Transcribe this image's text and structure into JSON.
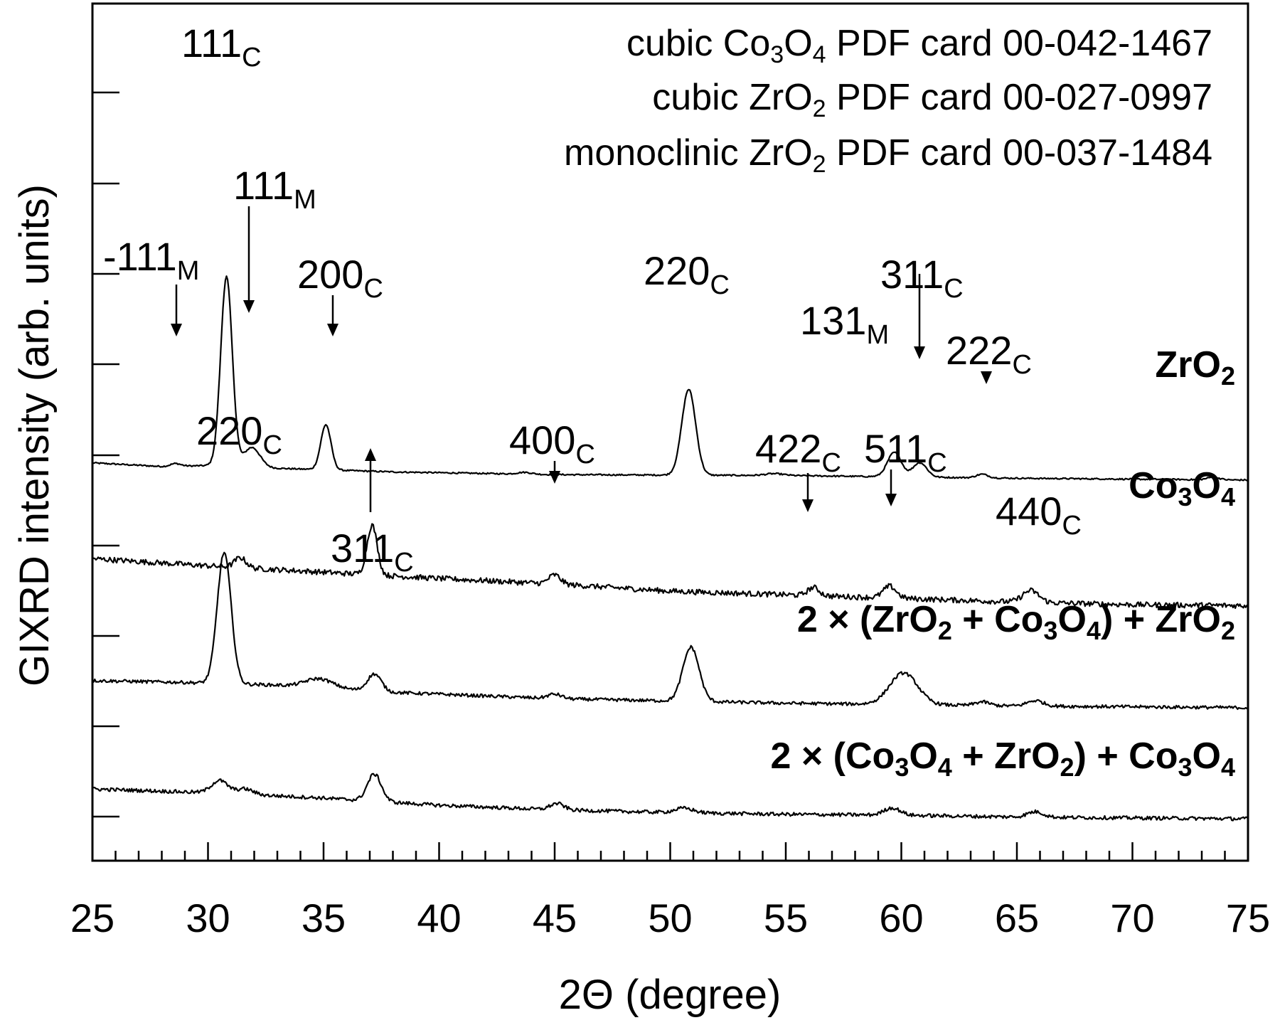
{
  "chart_data": {
    "type": "line",
    "xlabel": "2Θ (degree)",
    "ylabel": "GIXRD intensity (arb. units)",
    "xlim": [
      25,
      75
    ],
    "x_ticks": [
      25,
      30,
      35,
      40,
      45,
      50,
      55,
      60,
      65,
      70,
      75
    ],
    "y_tick_labels_shown": false,
    "grid": false,
    "references": [
      {
        "pre": "cubic Co",
        "s1": "3",
        "mid": "O",
        "s2": "4",
        "post": " PDF card 00-042-1467"
      },
      {
        "pre": "cubic ZrO",
        "s1": "2",
        "mid": "",
        "s2": "",
        "post": " PDF card 00-027-0997"
      },
      {
        "pre": "monoclinic ZrO",
        "s1": "2",
        "mid": "",
        "s2": "",
        "post": " PDF card 00-037-1484"
      }
    ],
    "series": [
      {
        "label_parts": [
          {
            "t": "ZrO"
          },
          {
            "t": "2",
            "sub": true
          }
        ],
        "baseline": [
          [
            25,
            0.66
          ],
          [
            28,
            0.62
          ],
          [
            30,
            0.63
          ],
          [
            33,
            0.6
          ],
          [
            38,
            0.56
          ],
          [
            45,
            0.53
          ],
          [
            55,
            0.52
          ],
          [
            65,
            0.49
          ],
          [
            75,
            0.47
          ]
        ],
        "peaks": [
          [
            28.6,
            0.03,
            0.22
          ],
          [
            30.8,
            2.1,
            0.25
          ],
          [
            31.9,
            0.22,
            0.35
          ],
          [
            35.1,
            0.5,
            0.22
          ],
          [
            50.8,
            0.95,
            0.3
          ],
          [
            59.7,
            0.27,
            0.3
          ],
          [
            60.8,
            0.16,
            0.3
          ],
          [
            63.5,
            0.04,
            0.25
          ],
          [
            73.5,
            0.03,
            0.25
          ],
          [
            43.7,
            0.02,
            0.3
          ],
          [
            54.5,
            0.02,
            0.4
          ]
        ],
        "noise": 0.008
      },
      {
        "label_parts": [
          {
            "t": "Co"
          },
          {
            "t": "3",
            "sub": true
          },
          {
            "t": "O"
          },
          {
            "t": "4",
            "sub": true
          }
        ],
        "baseline": [
          [
            25,
            0.8
          ],
          [
            30,
            0.72
          ],
          [
            35,
            0.65
          ],
          [
            40,
            0.58
          ],
          [
            45,
            0.52
          ],
          [
            50,
            0.44
          ],
          [
            55,
            0.4
          ],
          [
            60,
            0.36
          ],
          [
            65,
            0.32
          ],
          [
            70,
            0.29
          ],
          [
            75,
            0.28
          ]
        ],
        "peaks": [
          [
            31.4,
            0.11,
            0.25
          ],
          [
            37.1,
            0.55,
            0.22
          ],
          [
            45.0,
            0.1,
            0.25
          ],
          [
            56.2,
            0.09,
            0.25
          ],
          [
            59.5,
            0.13,
            0.28
          ],
          [
            65.6,
            0.13,
            0.35
          ]
        ],
        "noise": 0.03
      },
      {
        "label_parts": [
          {
            "t": "2 × (ZrO"
          },
          {
            "t": "2",
            "sub": true
          },
          {
            "t": " + Co"
          },
          {
            "t": "3",
            "sub": true
          },
          {
            "t": "O"
          },
          {
            "t": "4",
            "sub": true
          },
          {
            "t": ") + ZrO"
          },
          {
            "t": "2",
            "sub": true
          }
        ],
        "baseline": [
          [
            25,
            0.55
          ],
          [
            29,
            0.53
          ],
          [
            33,
            0.5
          ],
          [
            38,
            0.42
          ],
          [
            45,
            0.35
          ],
          [
            55,
            0.3
          ],
          [
            65,
            0.27
          ],
          [
            75,
            0.25
          ]
        ],
        "peaks": [
          [
            30.7,
            1.45,
            0.3
          ],
          [
            34.8,
            0.1,
            0.6
          ],
          [
            37.2,
            0.19,
            0.3
          ],
          [
            45.0,
            0.05,
            0.3
          ],
          [
            50.9,
            0.6,
            0.35
          ],
          [
            60.1,
            0.35,
            0.6
          ],
          [
            63.5,
            0.04,
            0.3
          ],
          [
            65.8,
            0.06,
            0.35
          ]
        ],
        "noise": 0.018
      },
      {
        "label_parts": [
          {
            "t": "2 × (Co"
          },
          {
            "t": "3",
            "sub": true
          },
          {
            "t": "O"
          },
          {
            "t": "4",
            "sub": true
          },
          {
            "t": " + ZrO"
          },
          {
            "t": "2",
            "sub": true
          },
          {
            "t": ") + Co"
          },
          {
            "t": "3",
            "sub": true
          },
          {
            "t": "O"
          },
          {
            "t": "4",
            "sub": true
          }
        ],
        "baseline": [
          [
            25,
            0.4
          ],
          [
            30,
            0.36
          ],
          [
            35,
            0.3
          ],
          [
            40,
            0.22
          ],
          [
            45,
            0.17
          ],
          [
            50,
            0.14
          ],
          [
            55,
            0.12
          ],
          [
            60,
            0.11
          ],
          [
            65,
            0.09
          ],
          [
            75,
            0.07
          ]
        ],
        "peaks": [
          [
            30.5,
            0.14,
            0.35
          ],
          [
            31.6,
            0.06,
            0.35
          ],
          [
            37.2,
            0.3,
            0.3
          ],
          [
            45.1,
            0.07,
            0.3
          ],
          [
            50.6,
            0.05,
            0.4
          ],
          [
            59.6,
            0.08,
            0.35
          ],
          [
            65.8,
            0.06,
            0.35
          ]
        ],
        "noise": 0.02
      }
    ],
    "annotations": [
      {
        "num": "111",
        "sub": "C",
        "x": 30.8
      },
      {
        "num": "-111",
        "sub": "M",
        "x": 28.6
      },
      {
        "num": "111",
        "sub": "M",
        "x": 31.7
      },
      {
        "num": "200",
        "sub": "C",
        "x": 35.4
      },
      {
        "num": "220",
        "sub": "C",
        "x": 50.8
      },
      {
        "num": "131",
        "sub": "M",
        "x": 59.7
      },
      {
        "num": "311",
        "sub": "C",
        "x": 60.8
      },
      {
        "num": "222",
        "sub": "C",
        "x": 63.5
      },
      {
        "num": "220",
        "sub": "C",
        "x": 31.4
      },
      {
        "num": "311",
        "sub": "C",
        "x": 36.9
      },
      {
        "num": "400",
        "sub": "C",
        "x": 45.0
      },
      {
        "num": "422",
        "sub": "C",
        "x": 56.0
      },
      {
        "num": "511",
        "sub": "C",
        "x": 59.4
      },
      {
        "num": "440",
        "sub": "C",
        "x": 65.6
      }
    ]
  }
}
